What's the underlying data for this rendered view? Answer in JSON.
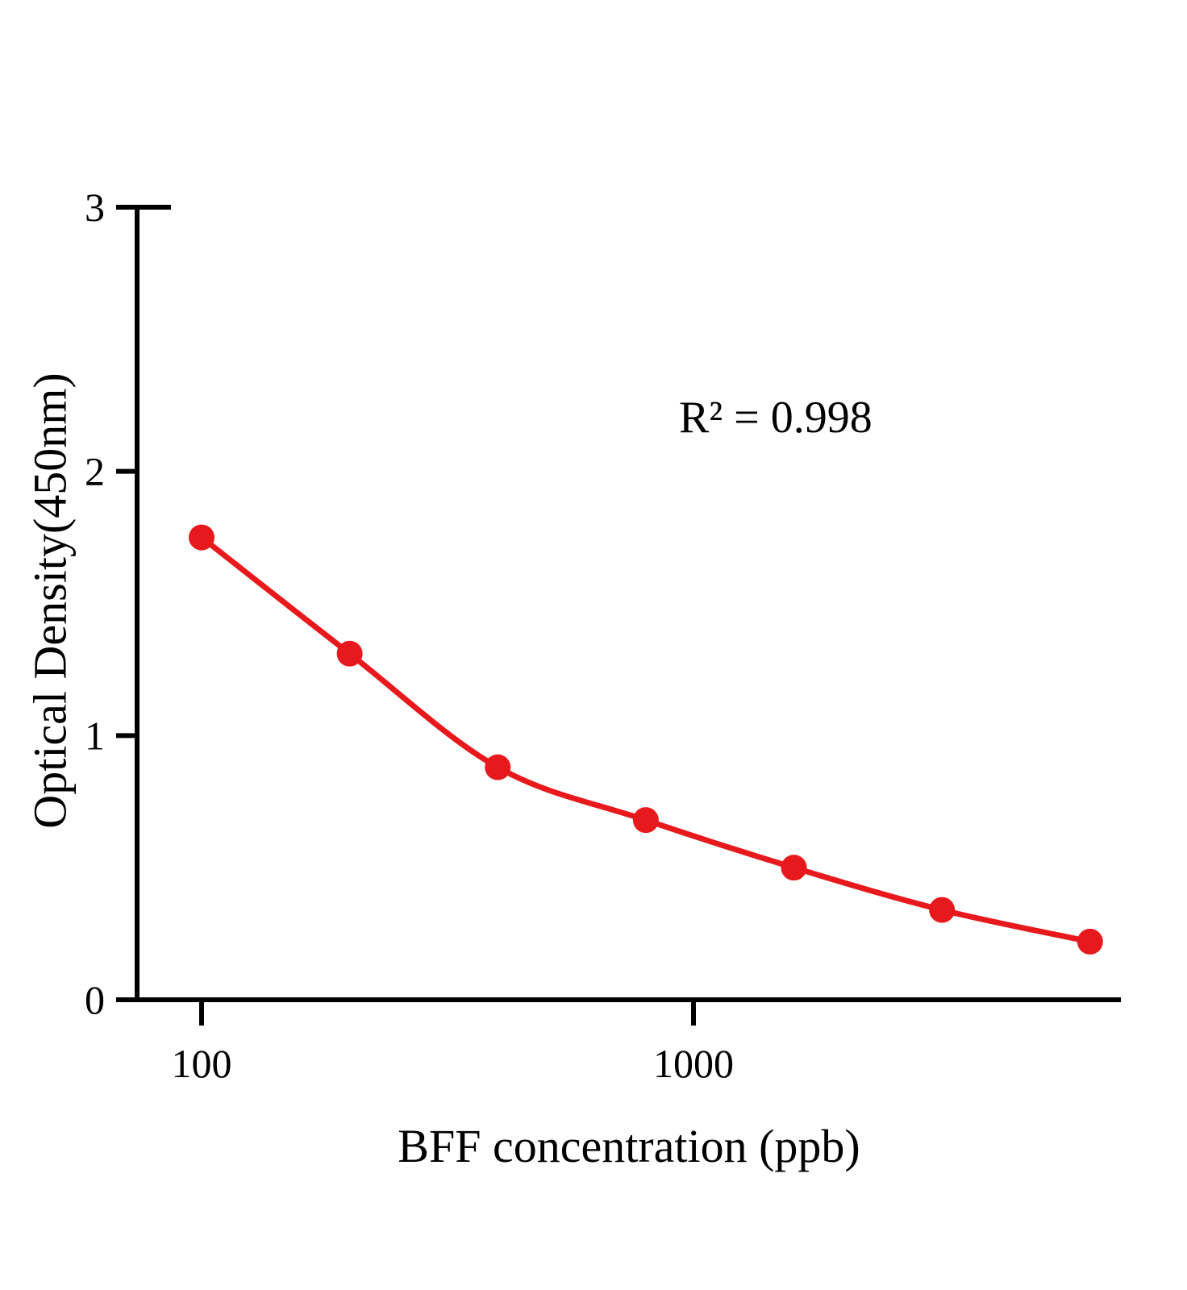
{
  "chart_data": {
    "type": "scatter",
    "title": "",
    "xlabel": "BFF concentration (ppb)",
    "ylabel": "Optical Density(450nm)",
    "annotation": "R² = 0.998",
    "x_scale": "log",
    "x": [
      100,
      200,
      400,
      800,
      1600,
      3200,
      6400
    ],
    "y": [
      1.75,
      1.31,
      0.88,
      0.68,
      0.5,
      0.34,
      0.22
    ],
    "x_ticks": [
      100,
      1000
    ],
    "x_tick_labels": [
      "100",
      "1000"
    ],
    "y_ticks": [
      0,
      1,
      2,
      3
    ],
    "y_tick_labels": [
      "0",
      "1",
      "2",
      "3"
    ],
    "ylim": [
      0,
      3
    ],
    "grid": false,
    "legend": "none",
    "curve": "smooth fit through points",
    "point_color": "#e8191c",
    "line_color": "#e8191c",
    "axis_color": "#000000"
  }
}
